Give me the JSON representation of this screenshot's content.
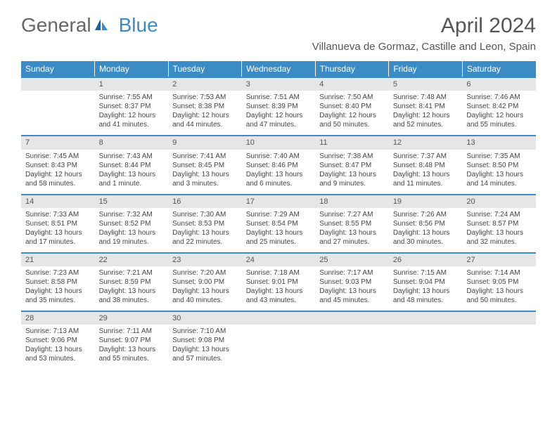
{
  "logo": {
    "general": "General",
    "blue": "Blue"
  },
  "title": "April 2024",
  "location": "Villanueva de Gormaz, Castille and Leon, Spain",
  "colors": {
    "header_bg": "#3b8cc4",
    "header_text": "#ffffff",
    "daynum_bg": "#e6e6e6",
    "border_accent": "#3b8cc4",
    "text": "#444444"
  },
  "weekdays": [
    "Sunday",
    "Monday",
    "Tuesday",
    "Wednesday",
    "Thursday",
    "Friday",
    "Saturday"
  ],
  "weeks": [
    {
      "nums": [
        "",
        "1",
        "2",
        "3",
        "4",
        "5",
        "6"
      ],
      "cells": [
        {
          "sunrise": "",
          "sunset": "",
          "daylight": ""
        },
        {
          "sunrise": "Sunrise: 7:55 AM",
          "sunset": "Sunset: 8:37 PM",
          "daylight": "Daylight: 12 hours and 41 minutes."
        },
        {
          "sunrise": "Sunrise: 7:53 AM",
          "sunset": "Sunset: 8:38 PM",
          "daylight": "Daylight: 12 hours and 44 minutes."
        },
        {
          "sunrise": "Sunrise: 7:51 AM",
          "sunset": "Sunset: 8:39 PM",
          "daylight": "Daylight: 12 hours and 47 minutes."
        },
        {
          "sunrise": "Sunrise: 7:50 AM",
          "sunset": "Sunset: 8:40 PM",
          "daylight": "Daylight: 12 hours and 50 minutes."
        },
        {
          "sunrise": "Sunrise: 7:48 AM",
          "sunset": "Sunset: 8:41 PM",
          "daylight": "Daylight: 12 hours and 52 minutes."
        },
        {
          "sunrise": "Sunrise: 7:46 AM",
          "sunset": "Sunset: 8:42 PM",
          "daylight": "Daylight: 12 hours and 55 minutes."
        }
      ]
    },
    {
      "nums": [
        "7",
        "8",
        "9",
        "10",
        "11",
        "12",
        "13"
      ],
      "cells": [
        {
          "sunrise": "Sunrise: 7:45 AM",
          "sunset": "Sunset: 8:43 PM",
          "daylight": "Daylight: 12 hours and 58 minutes."
        },
        {
          "sunrise": "Sunrise: 7:43 AM",
          "sunset": "Sunset: 8:44 PM",
          "daylight": "Daylight: 13 hours and 1 minute."
        },
        {
          "sunrise": "Sunrise: 7:41 AM",
          "sunset": "Sunset: 8:45 PM",
          "daylight": "Daylight: 13 hours and 3 minutes."
        },
        {
          "sunrise": "Sunrise: 7:40 AM",
          "sunset": "Sunset: 8:46 PM",
          "daylight": "Daylight: 13 hours and 6 minutes."
        },
        {
          "sunrise": "Sunrise: 7:38 AM",
          "sunset": "Sunset: 8:47 PM",
          "daylight": "Daylight: 13 hours and 9 minutes."
        },
        {
          "sunrise": "Sunrise: 7:37 AM",
          "sunset": "Sunset: 8:48 PM",
          "daylight": "Daylight: 13 hours and 11 minutes."
        },
        {
          "sunrise": "Sunrise: 7:35 AM",
          "sunset": "Sunset: 8:50 PM",
          "daylight": "Daylight: 13 hours and 14 minutes."
        }
      ]
    },
    {
      "nums": [
        "14",
        "15",
        "16",
        "17",
        "18",
        "19",
        "20"
      ],
      "cells": [
        {
          "sunrise": "Sunrise: 7:33 AM",
          "sunset": "Sunset: 8:51 PM",
          "daylight": "Daylight: 13 hours and 17 minutes."
        },
        {
          "sunrise": "Sunrise: 7:32 AM",
          "sunset": "Sunset: 8:52 PM",
          "daylight": "Daylight: 13 hours and 19 minutes."
        },
        {
          "sunrise": "Sunrise: 7:30 AM",
          "sunset": "Sunset: 8:53 PM",
          "daylight": "Daylight: 13 hours and 22 minutes."
        },
        {
          "sunrise": "Sunrise: 7:29 AM",
          "sunset": "Sunset: 8:54 PM",
          "daylight": "Daylight: 13 hours and 25 minutes."
        },
        {
          "sunrise": "Sunrise: 7:27 AM",
          "sunset": "Sunset: 8:55 PM",
          "daylight": "Daylight: 13 hours and 27 minutes."
        },
        {
          "sunrise": "Sunrise: 7:26 AM",
          "sunset": "Sunset: 8:56 PM",
          "daylight": "Daylight: 13 hours and 30 minutes."
        },
        {
          "sunrise": "Sunrise: 7:24 AM",
          "sunset": "Sunset: 8:57 PM",
          "daylight": "Daylight: 13 hours and 32 minutes."
        }
      ]
    },
    {
      "nums": [
        "21",
        "22",
        "23",
        "24",
        "25",
        "26",
        "27"
      ],
      "cells": [
        {
          "sunrise": "Sunrise: 7:23 AM",
          "sunset": "Sunset: 8:58 PM",
          "daylight": "Daylight: 13 hours and 35 minutes."
        },
        {
          "sunrise": "Sunrise: 7:21 AM",
          "sunset": "Sunset: 8:59 PM",
          "daylight": "Daylight: 13 hours and 38 minutes."
        },
        {
          "sunrise": "Sunrise: 7:20 AM",
          "sunset": "Sunset: 9:00 PM",
          "daylight": "Daylight: 13 hours and 40 minutes."
        },
        {
          "sunrise": "Sunrise: 7:18 AM",
          "sunset": "Sunset: 9:01 PM",
          "daylight": "Daylight: 13 hours and 43 minutes."
        },
        {
          "sunrise": "Sunrise: 7:17 AM",
          "sunset": "Sunset: 9:03 PM",
          "daylight": "Daylight: 13 hours and 45 minutes."
        },
        {
          "sunrise": "Sunrise: 7:15 AM",
          "sunset": "Sunset: 9:04 PM",
          "daylight": "Daylight: 13 hours and 48 minutes."
        },
        {
          "sunrise": "Sunrise: 7:14 AM",
          "sunset": "Sunset: 9:05 PM",
          "daylight": "Daylight: 13 hours and 50 minutes."
        }
      ]
    },
    {
      "nums": [
        "28",
        "29",
        "30",
        "",
        "",
        "",
        ""
      ],
      "cells": [
        {
          "sunrise": "Sunrise: 7:13 AM",
          "sunset": "Sunset: 9:06 PM",
          "daylight": "Daylight: 13 hours and 53 minutes."
        },
        {
          "sunrise": "Sunrise: 7:11 AM",
          "sunset": "Sunset: 9:07 PM",
          "daylight": "Daylight: 13 hours and 55 minutes."
        },
        {
          "sunrise": "Sunrise: 7:10 AM",
          "sunset": "Sunset: 9:08 PM",
          "daylight": "Daylight: 13 hours and 57 minutes."
        },
        {
          "sunrise": "",
          "sunset": "",
          "daylight": ""
        },
        {
          "sunrise": "",
          "sunset": "",
          "daylight": ""
        },
        {
          "sunrise": "",
          "sunset": "",
          "daylight": ""
        },
        {
          "sunrise": "",
          "sunset": "",
          "daylight": ""
        }
      ]
    }
  ]
}
